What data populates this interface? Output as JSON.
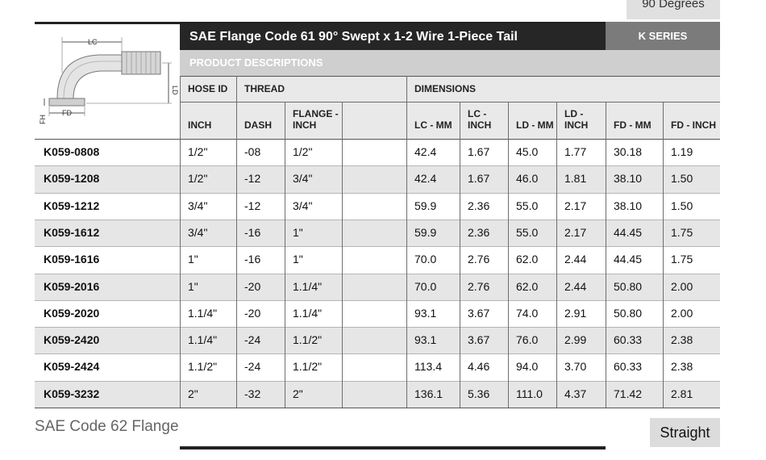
{
  "top_tab": "90 Degrees",
  "title": "SAE Flange Code 61 90° Swept x 1-2 Wire 1-Piece Tail",
  "series": "K SERIES",
  "product_descriptions": "PRODUCT DESCRIPTIONS",
  "diagram_labels": {
    "lc": "LC",
    "ld": "LD",
    "fd": "FD",
    "fh": "FH"
  },
  "headers": {
    "hose_id": "HOSE ID",
    "thread": "THREAD",
    "dimensions": "DIMENSIONS",
    "sub": [
      "INCH",
      "DASH",
      "FLANGE - INCH",
      "",
      "LC - MM",
      "LC - INCH",
      "LD - MM",
      "LD - INCH",
      "FD - MM",
      "FD - INCH"
    ]
  },
  "rows": [
    [
      "K059-0808",
      "1/2\"",
      "-08",
      "1/2\"",
      "",
      "42.4",
      "1.67",
      "45.0",
      "1.77",
      "30.18",
      "1.19"
    ],
    [
      "K059-1208",
      "1/2\"",
      "-12",
      "3/4\"",
      "",
      "42.4",
      "1.67",
      "46.0",
      "1.81",
      "38.10",
      "1.50"
    ],
    [
      "K059-1212",
      "3/4\"",
      "-12",
      "3/4\"",
      "",
      "59.9",
      "2.36",
      "55.0",
      "2.17",
      "38.10",
      "1.50"
    ],
    [
      "K059-1612",
      "3/4\"",
      "-16",
      "1\"",
      "",
      "59.9",
      "2.36",
      "55.0",
      "2.17",
      "44.45",
      "1.75"
    ],
    [
      "K059-1616",
      "1\"",
      "-16",
      "1\"",
      "",
      "70.0",
      "2.76",
      "62.0",
      "2.44",
      "44.45",
      "1.75"
    ],
    [
      "K059-2016",
      "1\"",
      "-20",
      "1.1/4\"",
      "",
      "70.0",
      "2.76",
      "62.0",
      "2.44",
      "50.80",
      "2.00"
    ],
    [
      "K059-2020",
      "1.1/4\"",
      "-20",
      "1.1/4\"",
      "",
      "93.1",
      "3.67",
      "74.0",
      "2.91",
      "50.80",
      "2.00"
    ],
    [
      "K059-2420",
      "1.1/4\"",
      "-24",
      "1.1/2\"",
      "",
      "93.1",
      "3.67",
      "76.0",
      "2.99",
      "60.33",
      "2.38"
    ],
    [
      "K059-2424",
      "1.1/2\"",
      "-24",
      "1.1/2\"",
      "",
      "113.4",
      "4.46",
      "94.0",
      "3.70",
      "60.33",
      "2.38"
    ],
    [
      "K059-3232",
      "2\"",
      "-32",
      "2\"",
      "",
      "136.1",
      "5.36",
      "111.0",
      "4.37",
      "71.42",
      "2.81"
    ]
  ],
  "footer_left": "SAE Code 62 Flange",
  "footer_tab": "Straight",
  "colors": {
    "dark": "#262626",
    "series": "#7b7b7b",
    "stripe": "#e6e6e6",
    "header_bg": "#e9e9e9"
  }
}
